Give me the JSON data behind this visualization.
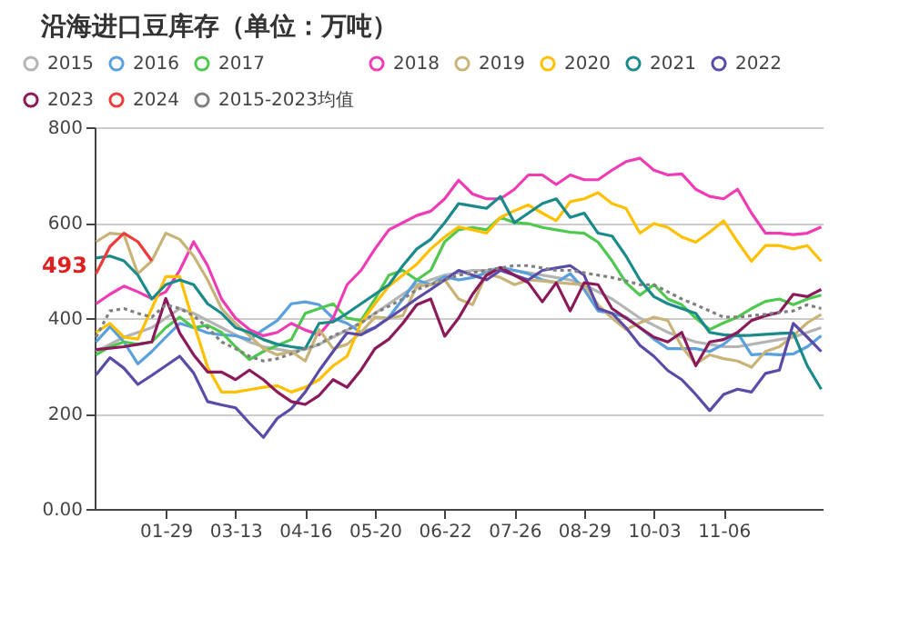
{
  "chart_data": {
    "type": "line",
    "title": "沿海进口豆库存（单位：万吨）",
    "categories": [
      null,
      null,
      null,
      null,
      null,
      "01-29",
      null,
      null,
      null,
      null,
      "03-13",
      null,
      null,
      null,
      null,
      "04-16",
      null,
      null,
      null,
      null,
      "05-20",
      null,
      null,
      null,
      null,
      "06-22",
      null,
      null,
      null,
      null,
      "07-26",
      null,
      null,
      null,
      null,
      "08-29",
      null,
      null,
      null,
      null,
      "10-03",
      null,
      null,
      null,
      null,
      "11-06",
      null,
      null,
      null,
      null,
      null,
      null,
      null
    ],
    "ylim": [
      0,
      800
    ],
    "yticks": [
      {
        "value": 0,
        "label": "0.00"
      },
      200,
      400,
      600,
      800
    ],
    "grid": "y",
    "legend": "top",
    "annotations": [
      "493"
    ],
    "series": [
      {
        "name": "2015",
        "color": "#b4b4b4",
        "values": [
          330,
          345,
          360,
          370,
          380,
          400,
          420,
          410,
          395,
          380,
          365,
          350,
          340,
          335,
          330,
          335,
          345,
          360,
          375,
          390,
          410,
          430,
          450,
          470,
          480,
          490,
          495,
          500,
          500,
          505,
          500,
          495,
          490,
          485,
          480,
          470,
          455,
          440,
          420,
          400,
          385,
          370,
          360,
          350,
          345,
          340,
          340,
          345,
          350,
          355,
          360,
          370,
          380
        ]
      },
      {
        "name": "2016",
        "color": "#5aa0dc",
        "values": [
          350,
          382,
          350,
          304,
          330,
          360,
          389,
          380,
          369,
          365,
          363,
          355,
          376,
          395,
          430,
          434,
          428,
          400,
          389,
          370,
          380,
          402,
          440,
          480,
          470,
          487,
          480,
          485,
          495,
          506,
          500,
          493,
          480,
          474,
          493,
          460,
          415,
          410,
          402,
          380,
          356,
          336,
          336,
          336,
          330,
          345,
          369,
          323,
          325,
          323,
          325,
          340,
          363
        ]
      },
      {
        "name": "2017",
        "color": "#50c850",
        "values": [
          323,
          340,
          350,
          345,
          350,
          380,
          402,
          380,
          385,
          370,
          340,
          313,
          330,
          343,
          355,
          410,
          420,
          430,
          400,
          395,
          440,
          490,
          500,
          480,
          500,
          560,
          585,
          590,
          585,
          611,
          600,
          598,
          590,
          585,
          580,
          578,
          559,
          520,
          474,
          448,
          470,
          440,
          428,
          400,
          376,
          390,
          402,
          420,
          435,
          440,
          428,
          440,
          448
        ]
      },
      {
        "name": "2018",
        "color": "#f03cb4",
        "values": [
          430,
          450,
          467,
          455,
          441,
          455,
          500,
          560,
          510,
          440,
          400,
          376,
          363,
          370,
          389,
          375,
          365,
          400,
          470,
          500,
          545,
          585,
          600,
          615,
          624,
          650,
          689,
          660,
          650,
          650,
          670,
          700,
          700,
          680,
          700,
          690,
          690,
          710,
          728,
          735,
          710,
          700,
          702,
          670,
          655,
          650,
          670,
          620,
          578,
          578,
          575,
          578,
          591
        ]
      },
      {
        "name": "2019",
        "color": "#c8b478",
        "values": [
          560,
          578,
          575,
          493,
          520,
          578,
          565,
          530,
          480,
          420,
          389,
          363,
          336,
          323,
          330,
          310,
          376,
          336,
          345,
          370,
          402,
          400,
          405,
          467,
          470,
          480,
          440,
          428,
          493,
          485,
          470,
          480,
          478,
          475,
          472,
          470,
          428,
          400,
          376,
          390,
          402,
          395,
          340,
          304,
          323,
          315,
          310,
          297,
          330,
          340,
          363,
          390,
          408
        ]
      },
      {
        "name": "2020",
        "color": "#ffc000",
        "values": [
          370,
          389,
          360,
          356,
          420,
          487,
          487,
          389,
          297,
          245,
          245,
          250,
          255,
          258,
          245,
          255,
          271,
          300,
          320,
          390,
          430,
          467,
          490,
          513,
          545,
          570,
          591,
          585,
          578,
          611,
          625,
          637,
          620,
          604,
          644,
          650,
          663,
          640,
          630,
          578,
          598,
          590,
          570,
          559,
          580,
          604,
          560,
          519,
          552,
          552,
          545,
          552,
          519
        ]
      },
      {
        "name": "2021",
        "color": "#1a8a8a",
        "values": [
          526,
          530,
          520,
          490,
          440,
          470,
          480,
          470,
          430,
          410,
          380,
          370,
          355,
          345,
          340,
          336,
          389,
          392,
          410,
          430,
          450,
          470,
          510,
          545,
          565,
          600,
          640,
          635,
          630,
          655,
          600,
          620,
          640,
          650,
          611,
          620,
          578,
          572,
          530,
          480,
          445,
          430,
          420,
          410,
          370,
          365,
          363,
          364,
          366,
          368,
          369,
          300,
          251
        ]
      },
      {
        "name": "2022",
        "color": "#5b4aa8",
        "values": [
          281,
          317,
          295,
          261,
          280,
          300,
          320,
          285,
          225,
          218,
          212,
          180,
          150,
          190,
          210,
          245,
          290,
          330,
          369,
          365,
          380,
          400,
          420,
          441,
          460,
          480,
          500,
          490,
          480,
          500,
          490,
          480,
          500,
          505,
          510,
          490,
          420,
          410,
          380,
          343,
          320,
          290,
          271,
          240,
          206,
          240,
          251,
          245,
          284,
          291,
          389,
          360,
          330
        ]
      },
      {
        "name": "2023",
        "color": "#8b1a5a",
        "values": [
          334,
          337,
          340,
          345,
          350,
          441,
          369,
          323,
          287,
          287,
          271,
          291,
          271,
          245,
          225,
          219,
          238,
          271,
          255,
          291,
          336,
          356,
          389,
          428,
          440,
          362,
          400,
          450,
          490,
          506,
          490,
          474,
          434,
          474,
          415,
          474,
          470,
          420,
          400,
          380,
          360,
          350,
          370,
          300,
          350,
          355,
          370,
          395,
          405,
          412,
          450,
          445,
          460
        ]
      },
      {
        "name": "2024",
        "color": "#ee3b3b",
        "values": [
          493,
          550,
          578,
          560,
          520,
          null,
          null,
          null,
          null,
          null,
          null,
          null,
          null,
          null,
          null,
          null,
          null,
          null,
          null,
          null,
          null,
          null,
          null,
          null,
          null,
          null,
          null,
          null,
          null,
          null,
          null,
          null,
          null,
          null,
          null,
          null,
          null,
          null,
          null,
          null,
          null,
          null,
          null,
          null,
          null,
          null,
          null,
          null,
          null,
          null,
          null,
          null,
          null
        ]
      },
      {
        "name": "2015-2023均值",
        "color": "#808080",
        "line_style": "dotted",
        "values": [
          360,
          415,
          420,
          410,
          402,
          428,
          420,
          405,
          380,
          350,
          336,
          320,
          310,
          315,
          325,
          336,
          345,
          363,
          375,
          390,
          410,
          425,
          440,
          460,
          470,
          480,
          490,
          495,
          500,
          505,
          510,
          510,
          505,
          500,
          500,
          495,
          490,
          485,
          478,
          470,
          470,
          455,
          440,
          428,
          415,
          402,
          402,
          405,
          408,
          412,
          415,
          428,
          420
        ]
      }
    ]
  }
}
